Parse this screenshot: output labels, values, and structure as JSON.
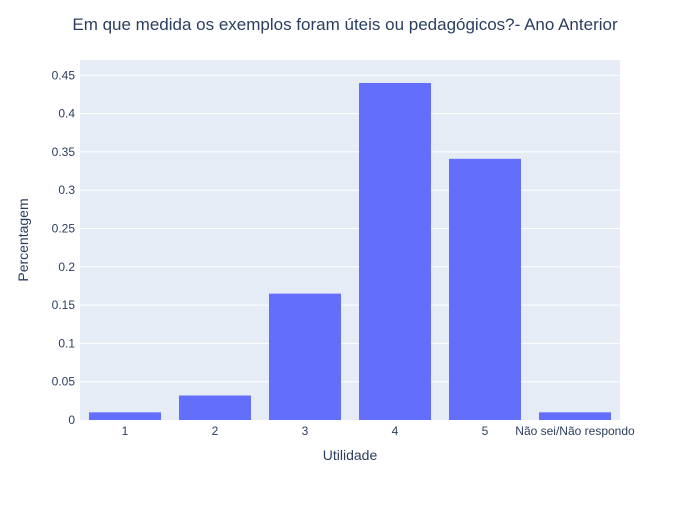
{
  "chart_data": {
    "type": "bar",
    "title": "Em que medida os exemplos foram úteis ou pedagógicos?- Ano Anterior",
    "xlabel": "Utilidade",
    "ylabel": "Percentagem",
    "categories": [
      "1",
      "2",
      "3",
      "4",
      "5",
      "Não sei/Não respondo"
    ],
    "values": [
      0.01,
      0.032,
      0.165,
      0.44,
      0.341,
      0.01
    ],
    "ylim": [
      0,
      0.47
    ],
    "yticks": [
      0,
      0.05,
      0.1,
      0.15,
      0.2,
      0.25,
      0.3,
      0.35,
      0.4,
      0.45
    ],
    "ytick_labels": [
      "0",
      "0.05",
      "0.1",
      "0.15",
      "0.2",
      "0.25",
      "0.3",
      "0.35",
      "0.4",
      "0.45"
    ],
    "grid": true,
    "legend": "none",
    "colors": {
      "bar": "#636efa",
      "plot_bg": "#e5ecf6",
      "grid": "#ffffff",
      "text": "#2a3f5f"
    }
  }
}
